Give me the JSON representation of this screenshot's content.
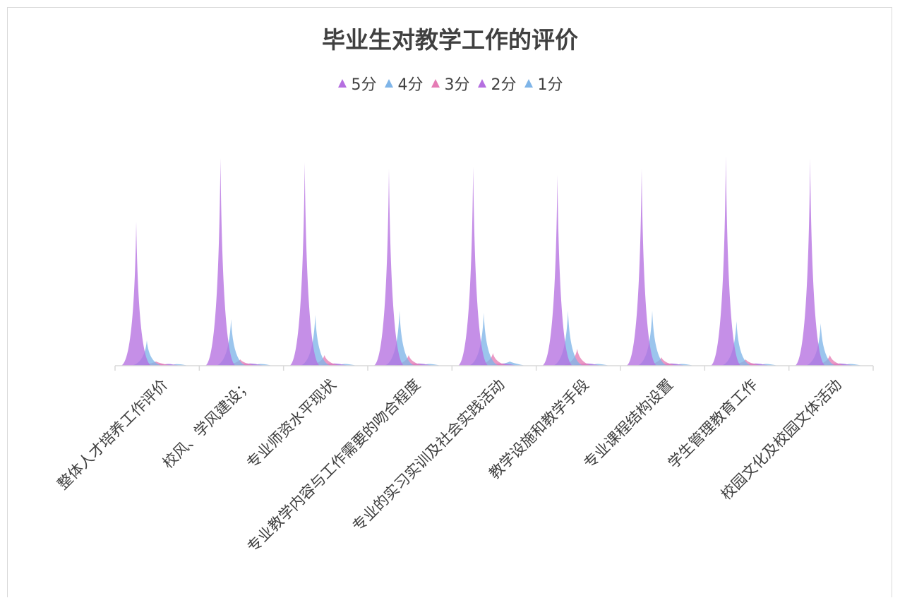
{
  "chart_data": {
    "type": "area",
    "title": "毕业生对教学工作的评价",
    "legend_position": "top",
    "grid": false,
    "categories": [
      "整体人才培养工作评价",
      "校风、学风建设；",
      "专业师资水平现状",
      "专业教学内容与工作需要的吻合程度",
      "专业的实习实训及社会实践活动",
      "教学设施和教学手段",
      "专业课程结构设置",
      "学生管理教育工作",
      "校园文化及校园文体活动"
    ],
    "ylim": [
      0,
      100
    ],
    "series": [
      {
        "name": "5分",
        "color": "#b56fe0",
        "values": [
          68,
          98,
          96,
          93,
          94,
          90,
          93,
          99,
          98
        ]
      },
      {
        "name": "4分",
        "color": "#7fb5e8",
        "values": [
          12,
          22,
          24,
          26,
          25,
          26,
          26,
          21,
          20
        ]
      },
      {
        "name": "3分",
        "color": "#e57cb5",
        "values": [
          2,
          3,
          5,
          5,
          6,
          8,
          4,
          3,
          5
        ]
      },
      {
        "name": "2分",
        "color": "#b56fe0",
        "values": [
          0.5,
          1,
          1,
          1,
          1,
          1,
          1,
          1,
          1
        ]
      },
      {
        "name": "1分",
        "color": "#7fb5e8",
        "values": [
          0.3,
          0.5,
          0.5,
          0.5,
          2,
          0.5,
          0.5,
          0.5,
          0.5
        ]
      }
    ]
  }
}
